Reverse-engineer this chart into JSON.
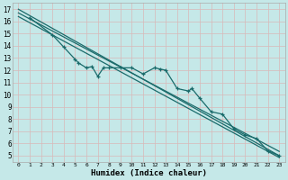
{
  "background_color": "#c5e8e8",
  "grid_color": "#e8e8e8",
  "line_color": "#1a6b6b",
  "xlabel": "Humidex (Indice chaleur)",
  "xlim": [
    -0.5,
    23.5
  ],
  "ylim": [
    4.5,
    17.5
  ],
  "xticks": [
    0,
    1,
    2,
    3,
    4,
    5,
    6,
    7,
    8,
    9,
    10,
    11,
    12,
    13,
    14,
    15,
    16,
    17,
    18,
    19,
    20,
    21,
    22,
    23
  ],
  "yticks": [
    5,
    6,
    7,
    8,
    9,
    10,
    11,
    12,
    13,
    14,
    15,
    16,
    17
  ],
  "line1_x": [
    0,
    23
  ],
  "line1_y": [
    17.0,
    5.0
  ],
  "line2_x": [
    0,
    23
  ],
  "line2_y": [
    16.4,
    4.85
  ],
  "line3_x": [
    0,
    23
  ],
  "line3_y": [
    16.7,
    5.35
  ],
  "jagged_x": [
    1,
    3,
    4,
    5,
    5.3,
    6,
    6.5,
    7,
    7.5,
    8,
    9,
    10,
    11,
    12,
    12.5,
    13,
    14,
    15,
    15.3,
    16,
    17,
    18,
    19,
    20,
    21,
    22,
    23
  ],
  "jagged_y": [
    16.3,
    14.9,
    13.9,
    12.9,
    12.6,
    12.2,
    12.3,
    11.5,
    12.2,
    12.2,
    12.2,
    12.2,
    11.7,
    12.2,
    12.1,
    12.0,
    10.5,
    10.3,
    10.5,
    9.7,
    8.6,
    8.4,
    7.2,
    6.7,
    6.4,
    5.4,
    5.0
  ]
}
